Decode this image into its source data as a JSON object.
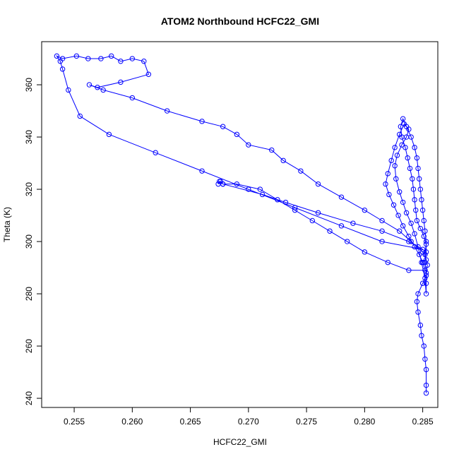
{
  "chart_data": {
    "type": "scatter",
    "title": "ATOM2 Northbound HCFC22_GMI",
    "xlabel": "HCFC22_GMI",
    "ylabel": "Theta (K)",
    "xlim": [
      0.2522,
      0.2863
    ],
    "ylim": [
      236.5,
      376.5
    ],
    "x_ticks": [
      0.255,
      0.26,
      0.265,
      0.27,
      0.275,
      0.28,
      0.285
    ],
    "y_ticks": [
      240,
      260,
      280,
      300,
      320,
      340,
      360
    ],
    "x_tick_labels": [
      "0.255",
      "0.260",
      "0.265",
      "0.270",
      "0.275",
      "0.280",
      "0.285"
    ],
    "y_tick_labels": [
      "240",
      "260",
      "280",
      "300",
      "320",
      "340",
      "360"
    ],
    "grid": false,
    "marker": "open-circle",
    "lines_connect_points": true,
    "color": "#0000ff",
    "series": [
      {
        "points": [
          [
            0.2853,
            242
          ],
          [
            0.2853,
            245
          ],
          [
            0.2853,
            251
          ],
          [
            0.2852,
            255
          ],
          [
            0.2851,
            260
          ],
          [
            0.2849,
            264
          ],
          [
            0.2848,
            268
          ],
          [
            0.2846,
            273
          ],
          [
            0.2845,
            277
          ],
          [
            0.2846,
            280
          ],
          [
            0.285,
            284
          ],
          [
            0.2853,
            287
          ],
          [
            0.2854,
            291
          ],
          [
            0.2852,
            295
          ],
          [
            0.2853,
            299
          ],
          [
            0.2851,
            302
          ],
          [
            0.2848,
            305
          ],
          [
            0.2845,
            308
          ],
          [
            0.2844,
            312
          ],
          [
            0.2843,
            316
          ],
          [
            0.2842,
            320
          ],
          [
            0.2841,
            324
          ],
          [
            0.2839,
            328
          ],
          [
            0.2837,
            332
          ],
          [
            0.2835,
            336
          ],
          [
            0.2832,
            340
          ],
          [
            0.2831,
            344
          ],
          [
            0.2833,
            347
          ],
          [
            0.2836,
            344
          ],
          [
            0.284,
            340
          ],
          [
            0.2843,
            336
          ],
          [
            0.2845,
            332
          ],
          [
            0.2846,
            328
          ],
          [
            0.2847,
            324
          ],
          [
            0.2848,
            320
          ],
          [
            0.2849,
            316
          ],
          [
            0.285,
            312
          ],
          [
            0.2851,
            308
          ],
          [
            0.2852,
            304
          ],
          [
            0.2853,
            300
          ],
          [
            0.2853,
            296
          ],
          [
            0.2852,
            292
          ],
          [
            0.2853,
            288
          ],
          [
            0.2853,
            284
          ],
          [
            0.2853,
            280
          ],
          [
            0.2852,
            286
          ],
          [
            0.2849,
            292
          ],
          [
            0.2846,
            298
          ],
          [
            0.2843,
            303
          ],
          [
            0.284,
            307
          ],
          [
            0.2836,
            311
          ],
          [
            0.2833,
            315
          ],
          [
            0.283,
            319
          ],
          [
            0.2827,
            324
          ],
          [
            0.2826,
            329
          ],
          [
            0.2828,
            333
          ],
          [
            0.2832,
            337
          ],
          [
            0.2836,
            340
          ],
          [
            0.2838,
            343
          ],
          [
            0.2834,
            345
          ],
          [
            0.283,
            341
          ],
          [
            0.2826,
            336
          ],
          [
            0.2823,
            331
          ],
          [
            0.282,
            326
          ],
          [
            0.2818,
            322
          ],
          [
            0.2821,
            318
          ],
          [
            0.2825,
            314
          ],
          [
            0.2829,
            310
          ],
          [
            0.2833,
            306
          ],
          [
            0.2838,
            302
          ],
          [
            0.2843,
            298
          ],
          [
            0.2847,
            295
          ],
          [
            0.285,
            292
          ],
          [
            0.2852,
            289
          ],
          [
            0.2838,
            289
          ],
          [
            0.282,
            292
          ],
          [
            0.28,
            296
          ],
          [
            0.2785,
            300
          ],
          [
            0.277,
            304
          ],
          [
            0.2755,
            308
          ],
          [
            0.274,
            312
          ],
          [
            0.2725,
            316
          ],
          [
            0.271,
            320
          ],
          [
            0.269,
            322
          ],
          [
            0.2678,
            322
          ],
          [
            0.2675,
            323
          ],
          [
            0.2674,
            322
          ],
          [
            0.2676,
            323
          ],
          [
            0.2678,
            322
          ],
          [
            0.2712,
            318
          ],
          [
            0.2732,
            315
          ],
          [
            0.276,
            311
          ],
          [
            0.279,
            307
          ],
          [
            0.2815,
            304
          ],
          [
            0.2838,
            300
          ],
          [
            0.285,
            297
          ],
          [
            0.2815,
            300
          ],
          [
            0.278,
            306
          ],
          [
            0.274,
            313
          ],
          [
            0.27,
            320
          ],
          [
            0.266,
            327
          ],
          [
            0.262,
            334
          ],
          [
            0.258,
            341
          ],
          [
            0.2555,
            348
          ],
          [
            0.2545,
            358
          ],
          [
            0.254,
            366
          ],
          [
            0.2538,
            369
          ],
          [
            0.2535,
            371
          ],
          [
            0.254,
            370
          ],
          [
            0.2552,
            371
          ],
          [
            0.2562,
            370
          ],
          [
            0.2573,
            370
          ],
          [
            0.2582,
            371
          ],
          [
            0.259,
            369
          ],
          [
            0.26,
            370
          ],
          [
            0.261,
            369
          ],
          [
            0.2614,
            364
          ],
          [
            0.259,
            361
          ],
          [
            0.257,
            359
          ],
          [
            0.2563,
            360
          ],
          [
            0.2575,
            358
          ],
          [
            0.26,
            355
          ],
          [
            0.263,
            350
          ],
          [
            0.266,
            346
          ],
          [
            0.2678,
            344
          ],
          [
            0.269,
            341
          ],
          [
            0.27,
            337
          ],
          [
            0.272,
            335
          ],
          [
            0.273,
            331
          ],
          [
            0.2745,
            327
          ],
          [
            0.276,
            322
          ],
          [
            0.278,
            317
          ],
          [
            0.28,
            312
          ],
          [
            0.2815,
            308
          ],
          [
            0.283,
            304
          ],
          [
            0.284,
            300
          ],
          [
            0.285,
            296
          ],
          [
            0.2853,
            293
          ]
        ]
      }
    ]
  }
}
